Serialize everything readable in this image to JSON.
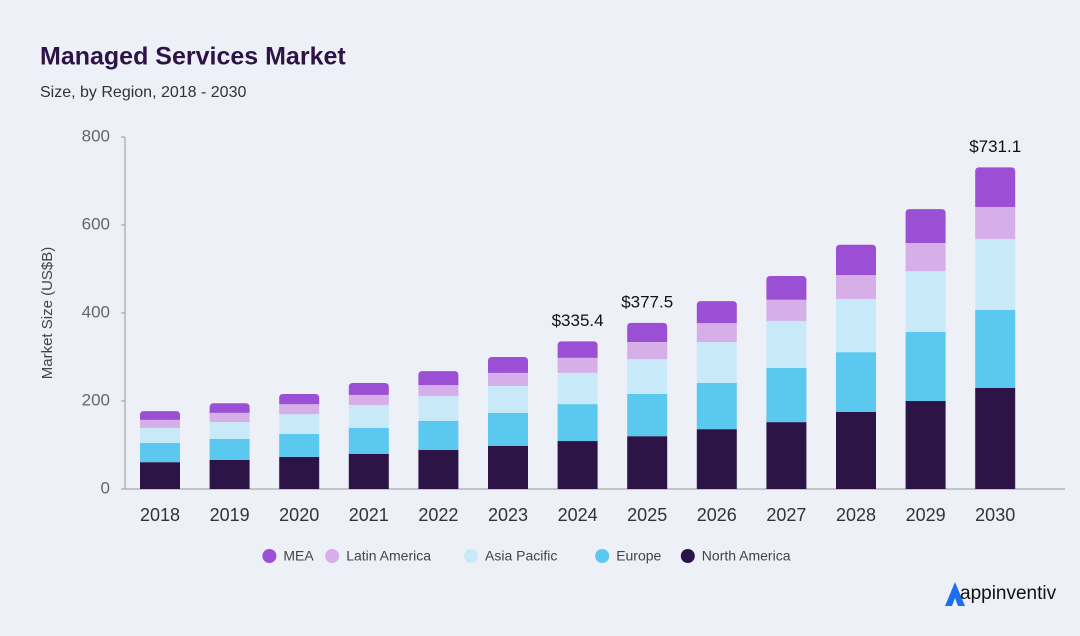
{
  "chart_data": {
    "type": "stacked_bar",
    "title": "Managed Services Market",
    "subtitle": "Size, by Region, 2018 - 2030",
    "y_label": "Market Size (US$B)",
    "categories": [
      "2018",
      "2019",
      "2020",
      "2021",
      "2022",
      "2023",
      "2024",
      "2025",
      "2026",
      "2027",
      "2028",
      "2029",
      "2030"
    ],
    "series": [
      {
        "name": "North America",
        "color": "#2d1446",
        "values": [
          61,
          66,
          73,
          80,
          89,
          98,
          109,
          120,
          136,
          152,
          175,
          200,
          230
        ]
      },
      {
        "name": "Europe",
        "color": "#5bc8ef",
        "values": [
          44,
          48,
          52,
          59,
          66,
          75,
          84,
          96,
          105,
          123,
          136,
          157,
          177
        ]
      },
      {
        "name": "Asia Pacific",
        "color": "#c8eaf8",
        "values": [
          34,
          38,
          45,
          52,
          56,
          61,
          71,
          79,
          93,
          107,
          121,
          138,
          161
        ]
      },
      {
        "name": "Latin America",
        "color": "#d6aee8",
        "values": [
          18,
          21,
          23,
          23,
          25,
          30,
          34,
          39,
          43,
          48,
          54,
          64,
          73
        ]
      },
      {
        "name": "MEA",
        "color": "#9b4fd4",
        "values": [
          20,
          22,
          23,
          27,
          32,
          36,
          37.4,
          43.5,
          50,
          54,
          69,
          77,
          90.1
        ]
      }
    ],
    "annotations": [
      {
        "category": "2024",
        "value": 335.4,
        "label": "$335.4"
      },
      {
        "category": "2025",
        "value": 377.5,
        "label": "$377.5"
      },
      {
        "category": "2030",
        "value": 731.1,
        "label": "$731.1"
      }
    ],
    "ylim": [
      0,
      800
    ],
    "yticks": [
      0,
      200,
      400,
      600,
      800
    ]
  },
  "logo": "appinventiv"
}
